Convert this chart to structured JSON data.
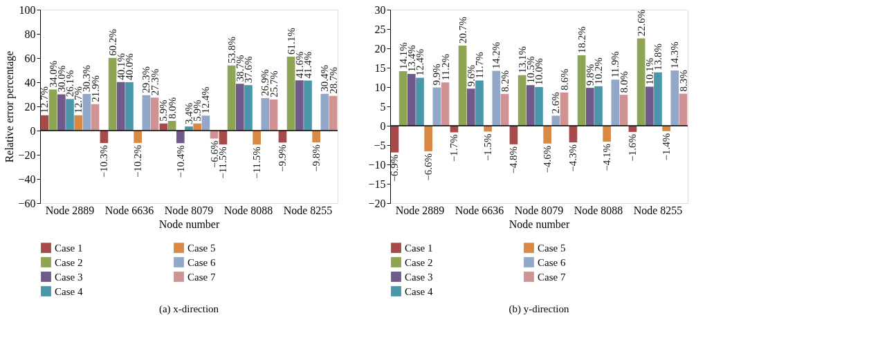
{
  "chart_data": [
    {
      "type": "bar",
      "title": "(a)  x-direction",
      "xlabel": "Node number",
      "ylabel": "Relative error percentage",
      "categories": [
        "Node 2889",
        "Node 6636",
        "Node 8079",
        "Node 8088",
        "Node 8255"
      ],
      "ylim": [
        -60,
        100
      ],
      "yticks": [
        -60,
        -40,
        -20,
        0,
        20,
        40,
        60,
        80,
        100
      ],
      "legend": "bottom",
      "ref_lines": [
        {
          "axis": "y",
          "value": 0,
          "color": "#000000"
        }
      ],
      "series": [
        {
          "name": "Case 1",
          "color": "#a84a4a",
          "values": [
            12.7,
            -10.3,
            5.9,
            -11.5,
            -9.9
          ],
          "value_labels": [
            "12.7%",
            "−10.3%",
            "5.9%",
            "−11.5%",
            "−9.9%"
          ]
        },
        {
          "name": "Case 2",
          "color": "#8ea654",
          "values": [
            34.0,
            60.2,
            8.0,
            53.8,
            61.1
          ],
          "value_labels": [
            "34.0%",
            "60.2%",
            "8.0%",
            "53.8%",
            "61.1%"
          ]
        },
        {
          "name": "Case 3",
          "color": "#6f5a8b",
          "values": [
            30.0,
            40.1,
            -10.4,
            38.7,
            41.6
          ],
          "value_labels": [
            "30.0%",
            "40.1%",
            "−10.4%",
            "38.7%",
            "41.6%"
          ]
        },
        {
          "name": "Case 4",
          "color": "#4a97ab",
          "values": [
            26.1,
            40.0,
            3.4,
            37.6,
            41.4
          ],
          "value_labels": [
            "26.1%",
            "40.0%",
            "3.4%",
            "37.6%",
            "41.4%"
          ]
        },
        {
          "name": "Case 5",
          "color": "#d88a45",
          "values": [
            12.7,
            -10.2,
            5.9,
            -11.5,
            -9.8
          ],
          "value_labels": [
            "12.7%",
            "−10.2%",
            "5.9%",
            "−11.5%",
            "−9.8%"
          ]
        },
        {
          "name": "Case 6",
          "color": "#93a8c9",
          "values": [
            30.3,
            29.3,
            12.4,
            26.9,
            30.4
          ],
          "value_labels": [
            "30.3%",
            "29.3%",
            "12.4%",
            "26.9%",
            "30.4%"
          ]
        },
        {
          "name": "Case 7",
          "color": "#d09393",
          "values": [
            21.9,
            27.3,
            -6.6,
            25.7,
            28.7
          ],
          "value_labels": [
            "21.9%",
            "27.3%",
            "−6.6%",
            "25.7%",
            "28.7%"
          ]
        }
      ]
    },
    {
      "type": "bar",
      "title": "(b)  y-direction",
      "xlabel": "Node number",
      "categories": [
        "Node 2889",
        "Node 6636",
        "Node 8079",
        "Node 8088",
        "Node 8255"
      ],
      "ylim": [
        -20,
        30
      ],
      "yticks": [
        -20,
        -15,
        -10,
        -5,
        0,
        5,
        10,
        15,
        20,
        25,
        30
      ],
      "legend": "bottom",
      "ref_lines": [
        {
          "axis": "y",
          "value": 0,
          "color": "#000000"
        }
      ],
      "series": [
        {
          "name": "Case 1",
          "color": "#a84a4a",
          "values": [
            -6.9,
            -1.7,
            -4.8,
            -4.3,
            -1.6
          ],
          "value_labels": [
            "−6.9%",
            "−1.7%",
            "−4.8%",
            "−4.3%",
            "−1.6%"
          ]
        },
        {
          "name": "Case 2",
          "color": "#8ea654",
          "values": [
            14.1,
            20.7,
            13.1,
            18.2,
            22.6
          ],
          "value_labels": [
            "14.1%",
            "20.7%",
            "13.1%",
            "18.2%",
            "22.6%"
          ]
        },
        {
          "name": "Case 3",
          "color": "#6f5a8b",
          "values": [
            13.4,
            9.6,
            10.5,
            9.8,
            10.1
          ],
          "value_labels": [
            "13.4%",
            "9.6%",
            "10.5%",
            "9.8%",
            "10.1%"
          ]
        },
        {
          "name": "Case 4",
          "color": "#4a97ab",
          "values": [
            12.4,
            11.7,
            10.0,
            10.2,
            13.8
          ],
          "value_labels": [
            "12.4%",
            "11.7%",
            "10.0%",
            "10.2%",
            "13.8%"
          ]
        },
        {
          "name": "Case 5",
          "color": "#d88a45",
          "values": [
            -6.6,
            -1.5,
            -4.6,
            -4.1,
            -1.4
          ],
          "value_labels": [
            "−6.6%",
            "−1.5%",
            "−4.6%",
            "−4.1%",
            "−1.4%"
          ]
        },
        {
          "name": "Case 6",
          "color": "#93a8c9",
          "values": [
            9.9,
            14.2,
            2.6,
            11.9,
            14.3
          ],
          "value_labels": [
            "9.9%",
            "14.2%",
            "2.6%",
            "11.9%",
            "14.3%"
          ]
        },
        {
          "name": "Case 7",
          "color": "#d09393",
          "values": [
            11.2,
            8.2,
            8.6,
            8.0,
            8.3
          ],
          "value_labels": [
            "11.2%",
            "8.2%",
            "8.6%",
            "8.0%",
            "8.3%"
          ]
        }
      ]
    }
  ]
}
